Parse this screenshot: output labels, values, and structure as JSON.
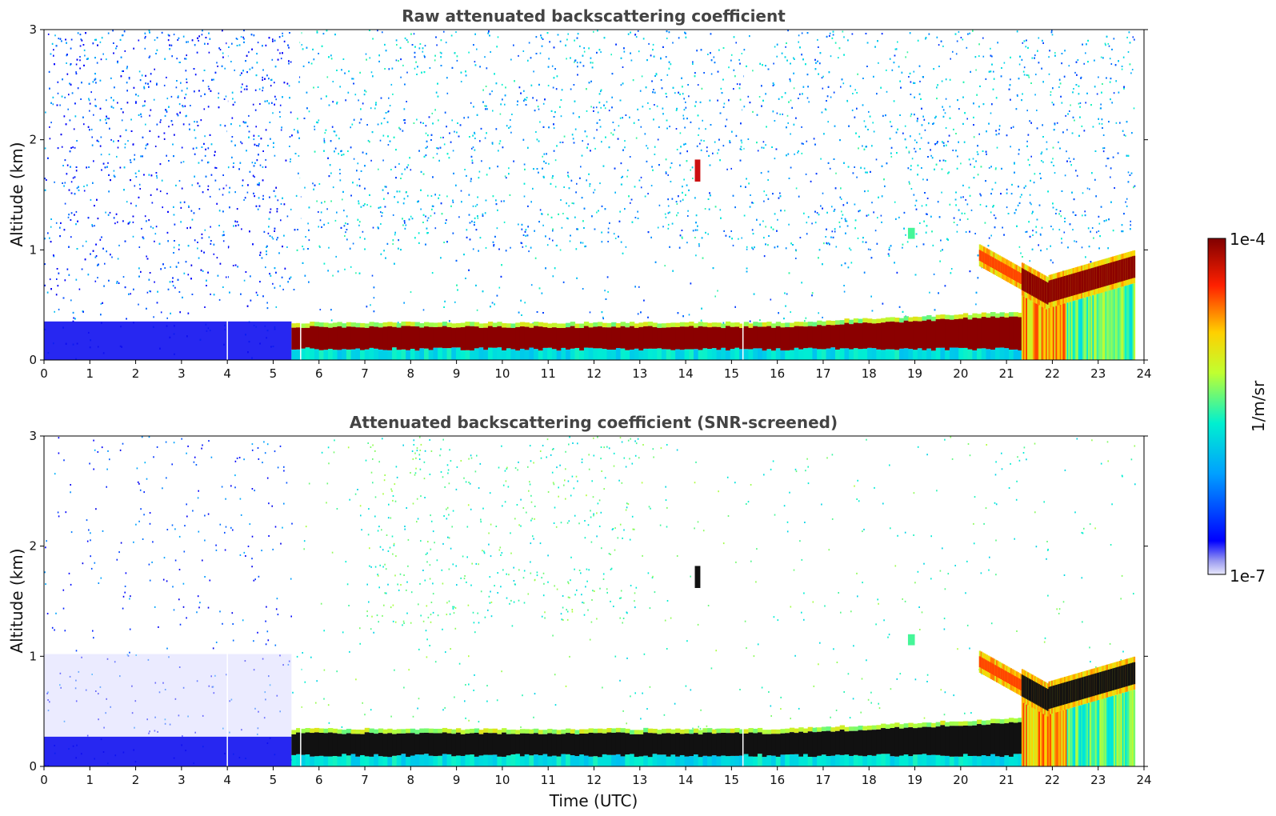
{
  "chart_data": [
    {
      "type": "heatmap",
      "title": "Raw attenuated backscattering coefficient",
      "ylabel": "Altitude (km)",
      "xlabel": "",
      "xlim": [
        0,
        24
      ],
      "ylim": [
        0,
        3
      ],
      "xticks": [
        "0",
        "1",
        "2",
        "3",
        "4",
        "5",
        "6",
        "7",
        "8",
        "9",
        "10",
        "11",
        "12",
        "13",
        "14",
        "15",
        "16",
        "17",
        "18",
        "19",
        "20",
        "21",
        "22",
        "23",
        "24"
      ],
      "yticks": [
        "0",
        "1",
        "2",
        "3"
      ],
      "grid": false,
      "features": [
        {
          "name": "boundary layer aerosol",
          "x_range": [
            5.4,
            21.3
          ],
          "y_range": [
            0.08,
            0.35
          ],
          "level": "high"
        },
        {
          "name": "elevated cloud layer",
          "x_range": [
            21.3,
            23.8
          ],
          "y_range": [
            0.6,
            0.95
          ],
          "level": "high"
        },
        {
          "name": "night-time noise",
          "x_range": [
            0,
            5.4
          ],
          "y_range": [
            0,
            3
          ],
          "level": "low"
        },
        {
          "name": "small cloud",
          "x": 14.25,
          "y": 1.72,
          "level": "high"
        }
      ]
    },
    {
      "type": "heatmap",
      "title": "Attenuated backscattering coefficient (SNR-screened)",
      "ylabel": "Altitude (km)",
      "xlabel": "Time (UTC)",
      "xlim": [
        0,
        24
      ],
      "ylim": [
        0,
        3
      ],
      "xticks": [
        "0",
        "1",
        "2",
        "3",
        "4",
        "5",
        "6",
        "7",
        "8",
        "9",
        "10",
        "11",
        "12",
        "13",
        "14",
        "15",
        "16",
        "17",
        "18",
        "19",
        "20",
        "21",
        "22",
        "23",
        "24"
      ],
      "yticks": [
        "0",
        "1",
        "2",
        "3"
      ],
      "grid": false,
      "features": [
        {
          "name": "boundary layer aerosol (saturated)",
          "x_range": [
            5.4,
            21.3
          ],
          "y_range": [
            0.1,
            0.3
          ],
          "level": "saturated"
        },
        {
          "name": "elevated cloud layer (saturated)",
          "x_range": [
            21.3,
            23.8
          ],
          "y_range": [
            0.6,
            0.95
          ],
          "level": "saturated"
        }
      ]
    }
  ],
  "colorbar": {
    "label": "1/m/sr",
    "max_label": "1e-4",
    "min_label": "1e-7",
    "colormap": "jet"
  }
}
